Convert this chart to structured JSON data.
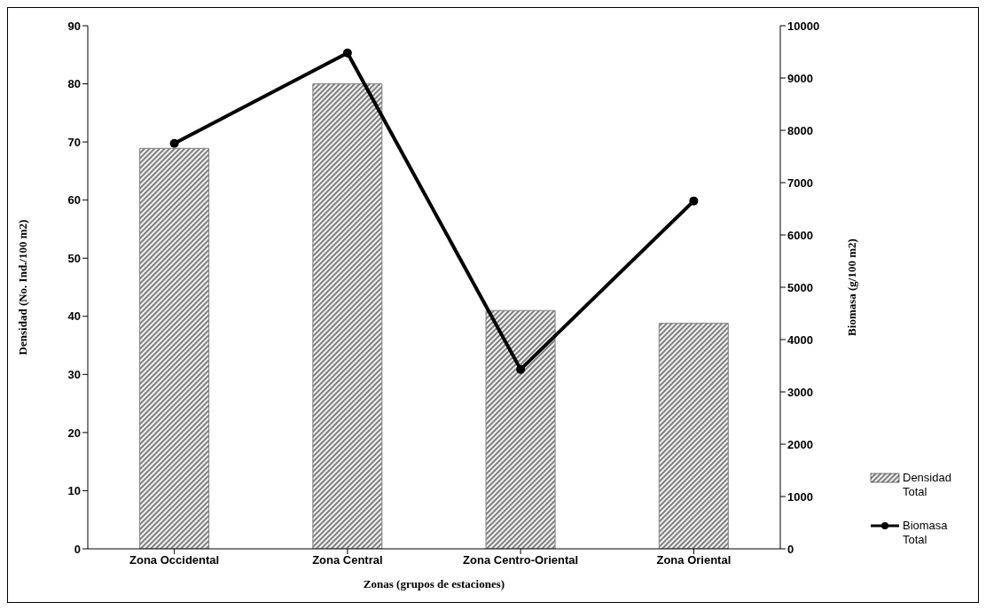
{
  "chart_data": {
    "type": "bar",
    "xlabel": "Zonas (grupos de estaciones)",
    "ylabel": "Densidad (No. Ind./100 m2)",
    "y2label": "Biomasa (g/100 m2)",
    "categories": [
      "Zona Occidental",
      "Zona Central",
      "Zona Centro-Oriental",
      "Zona Oriental"
    ],
    "series": [
      {
        "name": "Densidad Total",
        "color": "#7f7f7f",
        "values": [
          68.9,
          80,
          41,
          38.8
        ]
      },
      {
        "name": "Biomasa Total",
        "type": "line",
        "axis": "y2",
        "color": "#000000",
        "values": [
          7750,
          9480,
          3430,
          6650
        ]
      }
    ],
    "ylim": [
      0,
      90
    ],
    "yticks": [
      0,
      10,
      20,
      30,
      40,
      50,
      60,
      70,
      80,
      90
    ],
    "y2lim": [
      0,
      10000
    ],
    "y2ticks": [
      0,
      1000,
      2000,
      3000,
      4000,
      5000,
      6000,
      7000,
      8000,
      9000,
      10000
    ],
    "legend": "bottom right",
    "marker": "circle",
    "line_style": "solid"
  }
}
